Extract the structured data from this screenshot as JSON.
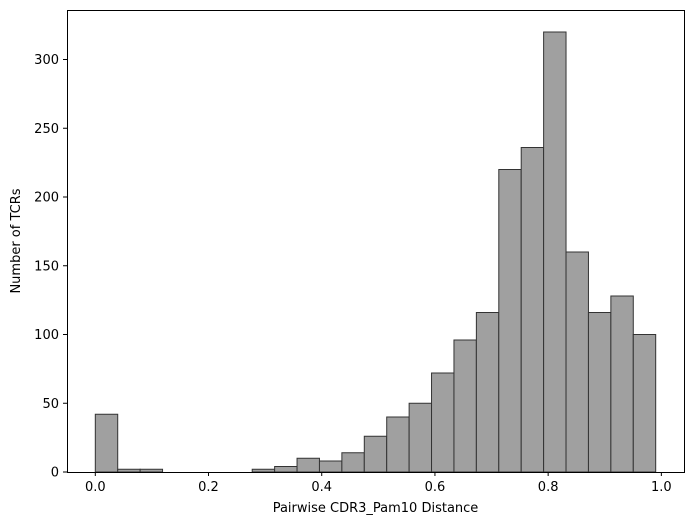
{
  "chart_data": {
    "type": "bar",
    "title": "",
    "xlabel": "Pairwise CDR3_Pam10 Distance",
    "ylabel": "Number of TCRs",
    "xlim": [
      -0.05,
      1.04
    ],
    "ylim": [
      0,
      336
    ],
    "xticks": [
      0.0,
      0.2,
      0.4,
      0.6,
      0.8,
      1.0
    ],
    "xtick_labels": [
      "0.0",
      "0.2",
      "0.4",
      "0.6",
      "0.8",
      "1.0"
    ],
    "yticks": [
      0,
      50,
      100,
      150,
      200,
      250,
      300
    ],
    "ytick_labels": [
      "0",
      "50",
      "100",
      "150",
      "200",
      "250",
      "300"
    ],
    "grid": false,
    "legend": "none",
    "bin_start": 0.0,
    "bin_width": 0.0396,
    "values": [
      42,
      2,
      2,
      0,
      0,
      0,
      0,
      2,
      4,
      10,
      8,
      14,
      26,
      40,
      50,
      72,
      96,
      116,
      220,
      236,
      320,
      160,
      116,
      128,
      100
    ],
    "bar_fill": "#a0a0a0",
    "bar_edge": "#333333"
  }
}
